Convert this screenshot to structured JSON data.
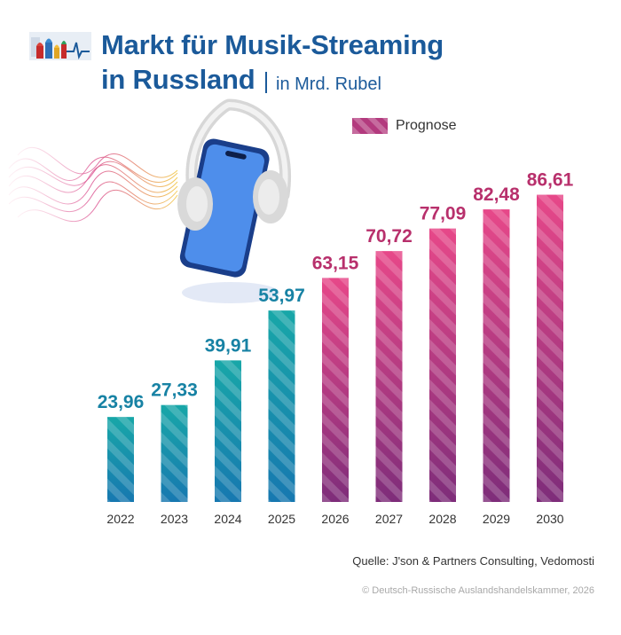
{
  "header": {
    "title_line1": "Markt für Musik-Streaming",
    "title_line2": "in Russland",
    "subtitle": "in Mrd. Rubel"
  },
  "legend": {
    "label": "Prognose"
  },
  "footer": {
    "source": "Quelle: J'son & Partners Consulting, Vedomosti",
    "copyright": "© Deutsch-Russische Auslandshandelskammer, 2026"
  },
  "colors": {
    "title": "#1b5a9a",
    "actual_bar_bottom": "#1778b0",
    "actual_bar_top": "#18a7a8",
    "actual_label": "#1782a4",
    "forecast_bar_bottom": "#7e2d7a",
    "forecast_bar_top": "#e74889",
    "forecast_label": "#b8306c"
  },
  "icons": [
    "dihk-logo-icon",
    "headphones-phone-illustration",
    "sound-wave-icon"
  ],
  "chart_data": {
    "type": "bar",
    "categories": [
      "2022",
      "2023",
      "2024",
      "2025",
      "2026",
      "2027",
      "2028",
      "2029",
      "2030"
    ],
    "values": [
      23.96,
      27.33,
      39.91,
      53.97,
      63.15,
      70.72,
      77.09,
      82.48,
      86.61
    ],
    "value_labels": [
      "23,96",
      "27,33",
      "39,91",
      "53,97",
      "63,15",
      "70,72",
      "77,09",
      "82,48",
      "86,61"
    ],
    "forecast": [
      false,
      false,
      false,
      false,
      true,
      true,
      true,
      true,
      true
    ],
    "title": "Markt für Musik-Streaming in Russland",
    "subtitle": "in Mrd. Rubel",
    "grid": false,
    "legend_position": "top-right"
  }
}
